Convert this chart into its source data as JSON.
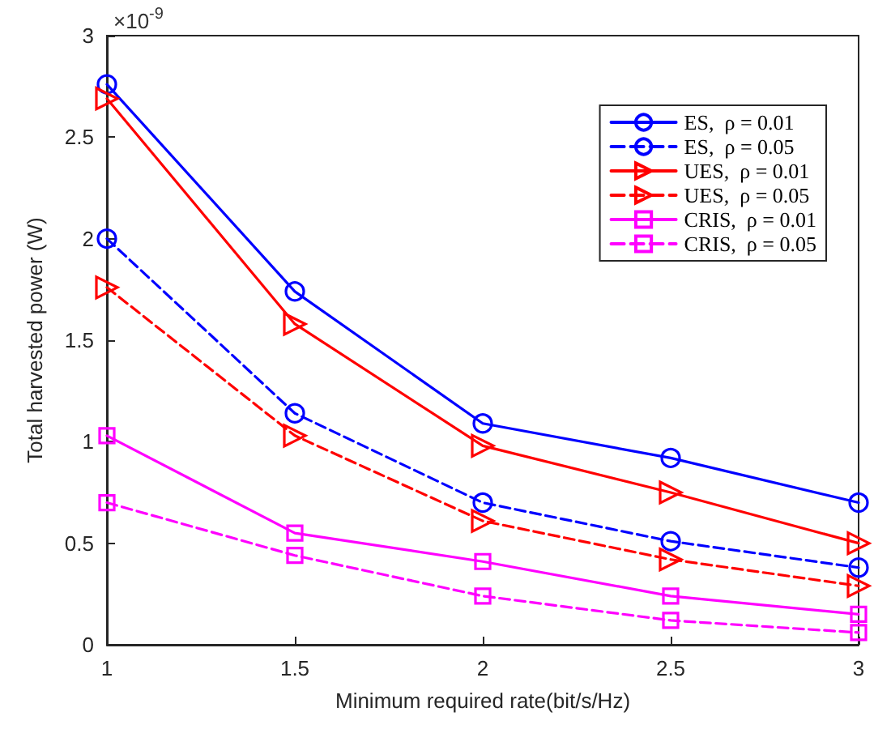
{
  "chart_data": {
    "type": "line",
    "xlabel": "Minimum required rate(bit/s/Hz)",
    "ylabel": "Total harvested power (W)",
    "annotations": [
      "×10$^{-9}$"
    ],
    "x": [
      1,
      1.5,
      2,
      2.5,
      3
    ],
    "xlim": [
      1,
      3
    ],
    "xticks": [
      1,
      1.5,
      2,
      2.5,
      3
    ],
    "ylim": [
      0,
      3
    ],
    "yticks": [
      0,
      0.5,
      1,
      1.5,
      2,
      2.5,
      3
    ],
    "grid": false,
    "legend": "top right",
    "series": [
      {
        "name": "ES,  ρ = 0.01",
        "color": "#0000ff",
        "marker": "circle",
        "line_style": "solid",
        "values": [
          2.76,
          1.74,
          1.09,
          0.92,
          0.7
        ]
      },
      {
        "name": "ES,  ρ = 0.05",
        "color": "#0000ff",
        "marker": "circle",
        "line_style": "dashed",
        "values": [
          2.0,
          1.14,
          0.7,
          0.51,
          0.38
        ]
      },
      {
        "name": "UES,  ρ = 0.01",
        "color": "#ff0000",
        "marker": "triangle",
        "line_style": "solid",
        "values": [
          2.69,
          1.58,
          0.98,
          0.75,
          0.5
        ]
      },
      {
        "name": "UES,  ρ = 0.05",
        "color": "#ff0000",
        "marker": "triangle",
        "line_style": "dashed",
        "values": [
          1.76,
          1.03,
          0.61,
          0.42,
          0.29
        ]
      },
      {
        "name": "CRIS,  ρ = 0.01",
        "color": "#ff00ff",
        "marker": "square",
        "line_style": "solid",
        "values": [
          1.03,
          0.55,
          0.41,
          0.24,
          0.15
        ]
      },
      {
        "name": "CRIS,  ρ = 0.05",
        "color": "#ff00ff",
        "marker": "square",
        "line_style": "dashed",
        "values": [
          0.7,
          0.44,
          0.24,
          0.12,
          0.06
        ]
      }
    ]
  }
}
